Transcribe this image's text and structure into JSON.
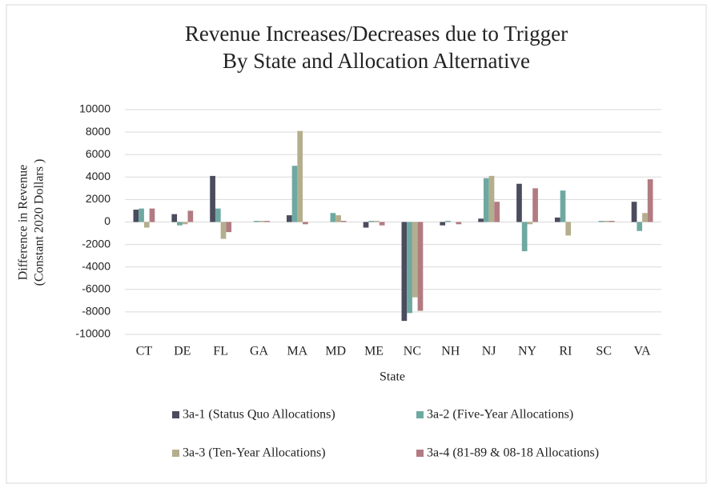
{
  "chart_data": {
    "type": "bar",
    "title": [
      "Revenue Increases/Decreases due to Trigger",
      "By State and Allocation Alternative"
    ],
    "y_label": [
      "Difference in Revenue",
      "(Constant 2020  Dollars )"
    ],
    "x_label": "State",
    "categories": [
      "CT",
      "DE",
      "FL",
      "GA",
      "MA",
      "MD",
      "ME",
      "NC",
      "NH",
      "NJ",
      "NY",
      "RI",
      "SC",
      "VA"
    ],
    "series": [
      {
        "name": "3a-1 (Status Quo Allocations)",
        "color": "#4b4c5e",
        "values": [
          1100,
          700,
          4100,
          0,
          600,
          0,
          -500,
          -8800,
          -300,
          300,
          3400,
          400,
          0,
          1800
        ]
      },
      {
        "name": "3a-2 (Five-Year Allocations)",
        "color": "#6ea9a1",
        "values": [
          1200,
          -300,
          1200,
          100,
          5000,
          800,
          100,
          -8100,
          100,
          3900,
          -2600,
          2800,
          100,
          -800
        ]
      },
      {
        "name": "3a-3 (Ten-Year Allocations)",
        "color": "#b4ae8e",
        "values": [
          -500,
          -200,
          -1500,
          100,
          8100,
          600,
          100,
          -6700,
          0,
          4100,
          -200,
          -1200,
          100,
          800
        ]
      },
      {
        "name": "3a-4 (81-89 & 08-18 Allocations)",
        "color": "#b27b82",
        "values": [
          1200,
          1000,
          -900,
          100,
          -200,
          100,
          -300,
          -7900,
          -200,
          1800,
          3000,
          0,
          100,
          3800
        ]
      }
    ],
    "ylim": [
      -10000,
      10000
    ],
    "yticks": [
      -10000,
      -8000,
      -6000,
      -4000,
      -2000,
      0,
      2000,
      4000,
      6000,
      8000,
      10000
    ],
    "grid": true
  }
}
